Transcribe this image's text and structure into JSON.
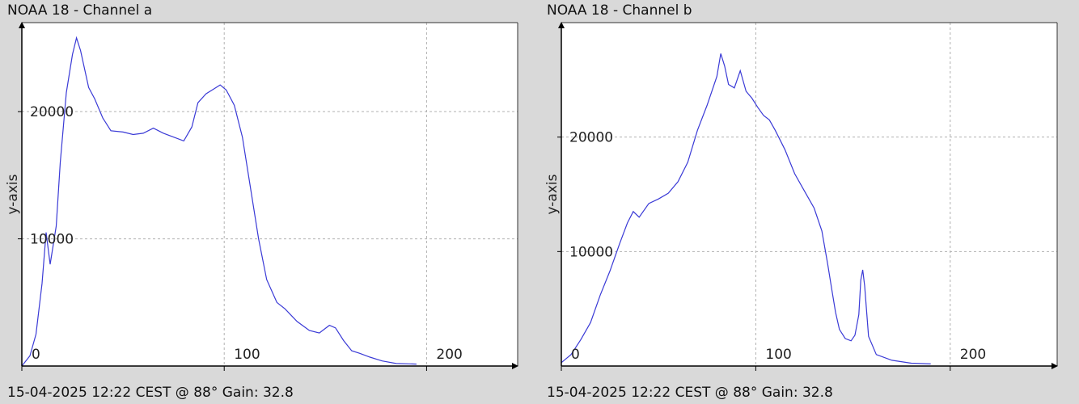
{
  "chart_data": [
    {
      "type": "line",
      "title": "NOAA 18 - Channel a",
      "footer": "15-04-2025 12:22 CEST @ 88° Gain: 32.8",
      "ylabel": "y-axis",
      "xlabel": "",
      "xlim": [
        0,
        245
      ],
      "ylim": [
        0,
        27000
      ],
      "grid": true,
      "x_ticks": [
        0,
        100,
        200
      ],
      "y_ticks": [
        10000,
        20000
      ],
      "x_tick_labels": [
        "0",
        "100",
        "200"
      ],
      "y_tick_labels": [
        "10000",
        "20000"
      ],
      "color": "#3a3ad6",
      "series": [
        {
          "points": [
            [
              0,
              0
            ],
            [
              4,
              800
            ],
            [
              7,
              2500
            ],
            [
              10,
              6500
            ],
            [
              12,
              10500
            ],
            [
              14,
              8000
            ],
            [
              17,
              11000
            ],
            [
              19,
              16000
            ],
            [
              22,
              21500
            ],
            [
              25,
              24500
            ],
            [
              27,
              25800
            ],
            [
              29,
              24800
            ],
            [
              33,
              21900
            ],
            [
              36,
              21000
            ],
            [
              40,
              19500
            ],
            [
              44,
              18500
            ],
            [
              50,
              18400
            ],
            [
              55,
              18200
            ],
            [
              60,
              18300
            ],
            [
              65,
              18700
            ],
            [
              70,
              18300
            ],
            [
              75,
              18000
            ],
            [
              80,
              17700
            ],
            [
              84,
              18800
            ],
            [
              87,
              20700
            ],
            [
              91,
              21400
            ],
            [
              95,
              21800
            ],
            [
              98,
              22100
            ],
            [
              101,
              21700
            ],
            [
              105,
              20500
            ],
            [
              109,
              18000
            ],
            [
              113,
              14000
            ],
            [
              117,
              10000
            ],
            [
              121,
              6800
            ],
            [
              126,
              5000
            ],
            [
              130,
              4500
            ],
            [
              136,
              3500
            ],
            [
              142,
              2800
            ],
            [
              147,
              2600
            ],
            [
              152,
              3200
            ],
            [
              155,
              3000
            ],
            [
              159,
              2000
            ],
            [
              163,
              1200
            ],
            [
              167,
              1000
            ],
            [
              172,
              700
            ],
            [
              178,
              400
            ],
            [
              185,
              200
            ],
            [
              195,
              150
            ]
          ]
        }
      ]
    },
    {
      "type": "line",
      "title": "NOAA 18 - Channel b",
      "footer": "15-04-2025 12:22 CEST @ 88° Gain: 32.8",
      "ylabel": "y-axis",
      "xlabel": "",
      "xlim": [
        0,
        255
      ],
      "ylim": [
        0,
        30000
      ],
      "grid": true,
      "x_ticks": [
        0,
        100,
        200
      ],
      "y_ticks": [
        10000,
        20000
      ],
      "x_tick_labels": [
        "0",
        "100",
        "200"
      ],
      "y_tick_labels": [
        "10000",
        "20000"
      ],
      "color": "#3a3ad6",
      "series": [
        {
          "points": [
            [
              0,
              300
            ],
            [
              5,
              1000
            ],
            [
              10,
              2300
            ],
            [
              15,
              3800
            ],
            [
              20,
              6200
            ],
            [
              25,
              8300
            ],
            [
              30,
              10700
            ],
            [
              34,
              12500
            ],
            [
              37,
              13500
            ],
            [
              40,
              13000
            ],
            [
              45,
              14200
            ],
            [
              50,
              14600
            ],
            [
              55,
              15100
            ],
            [
              60,
              16100
            ],
            [
              65,
              17800
            ],
            [
              70,
              20600
            ],
            [
              75,
              22800
            ],
            [
              80,
              25300
            ],
            [
              82,
              27300
            ],
            [
              84,
              26200
            ],
            [
              86,
              24600
            ],
            [
              89,
              24300
            ],
            [
              92,
              25800
            ],
            [
              95,
              24000
            ],
            [
              98,
              23400
            ],
            [
              101,
              22600
            ],
            [
              104,
              21900
            ],
            [
              107,
              21500
            ],
            [
              110,
              20600
            ],
            [
              115,
              18900
            ],
            [
              120,
              16800
            ],
            [
              125,
              15300
            ],
            [
              130,
              13800
            ],
            [
              134,
              11800
            ],
            [
              137,
              8900
            ],
            [
              139,
              6800
            ],
            [
              141,
              4700
            ],
            [
              143,
              3200
            ],
            [
              146,
              2400
            ],
            [
              149,
              2200
            ],
            [
              151,
              2700
            ],
            [
              153,
              4500
            ],
            [
              154,
              7500
            ],
            [
              155,
              8400
            ],
            [
              156,
              7000
            ],
            [
              158,
              2600
            ],
            [
              162,
              1000
            ],
            [
              170,
              500
            ],
            [
              180,
              250
            ],
            [
              190,
              180
            ]
          ]
        }
      ]
    }
  ]
}
